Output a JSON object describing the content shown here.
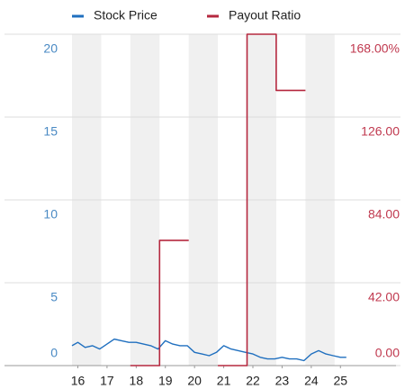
{
  "chart_data": {
    "type": "line",
    "xlim": [
      2015.8,
      2025.3
    ],
    "xticks": [
      {
        "value": 2016,
        "label": "16"
      },
      {
        "value": 2017,
        "label": "17"
      },
      {
        "value": 2018,
        "label": "18"
      },
      {
        "value": 2019,
        "label": "19"
      },
      {
        "value": 2020,
        "label": "20"
      },
      {
        "value": 2021,
        "label": "21"
      },
      {
        "value": 2022,
        "label": "22"
      },
      {
        "value": 2023,
        "label": "23"
      },
      {
        "value": 2024,
        "label": "24"
      },
      {
        "value": 2025,
        "label": "25"
      }
    ],
    "ylim": [
      0,
      20
    ],
    "yticks": [
      0,
      5,
      10,
      15,
      20
    ],
    "y2lim": [
      0,
      168
    ],
    "y2ticks": [
      {
        "value": 0,
        "label": "0.00"
      },
      {
        "value": 42,
        "label": "42.00"
      },
      {
        "value": 84,
        "label": "84.00"
      },
      {
        "value": 126,
        "label": "126.00"
      },
      {
        "value": 168,
        "label": "168.00%"
      }
    ],
    "grid": true,
    "series": [
      {
        "name": "Stock Price",
        "color": "#1f6fbf",
        "x": [
          2015.8,
          2016.0,
          2016.25,
          2016.5,
          2016.75,
          2017.0,
          2017.25,
          2017.5,
          2017.75,
          2018.0,
          2018.25,
          2018.5,
          2018.75,
          2019.0,
          2019.25,
          2019.5,
          2019.75,
          2020.0,
          2020.25,
          2020.5,
          2020.75,
          2021.0,
          2021.25,
          2021.5,
          2021.75,
          2022.0,
          2022.25,
          2022.5,
          2022.75,
          2023.0,
          2023.25,
          2023.5,
          2023.75,
          2024.0,
          2024.25,
          2024.5,
          2024.75,
          2025.0,
          2025.2
        ],
        "values": [
          1.2,
          1.4,
          1.1,
          1.2,
          1.0,
          1.3,
          1.6,
          1.5,
          1.4,
          1.4,
          1.3,
          1.2,
          1.0,
          1.5,
          1.3,
          1.2,
          1.2,
          0.8,
          0.7,
          0.6,
          0.8,
          1.2,
          1.0,
          0.9,
          0.8,
          0.7,
          0.5,
          0.4,
          0.4,
          0.5,
          0.4,
          0.4,
          0.3,
          0.7,
          0.9,
          0.7,
          0.6,
          0.5,
          0.5
        ]
      },
      {
        "name": "Payout Ratio",
        "color": "#b5283f",
        "axis": "y2",
        "x": [
          2017.8,
          2018.8,
          2018.8,
          2019.8,
          2019.8,
          2020.8,
          2021.8,
          2021.8,
          2022.8,
          2022.8,
          2023.8
        ],
        "values": [
          0,
          0,
          63.5,
          63.5,
          null,
          0,
          0,
          168,
          168,
          139.5,
          139.5
        ]
      }
    ]
  }
}
